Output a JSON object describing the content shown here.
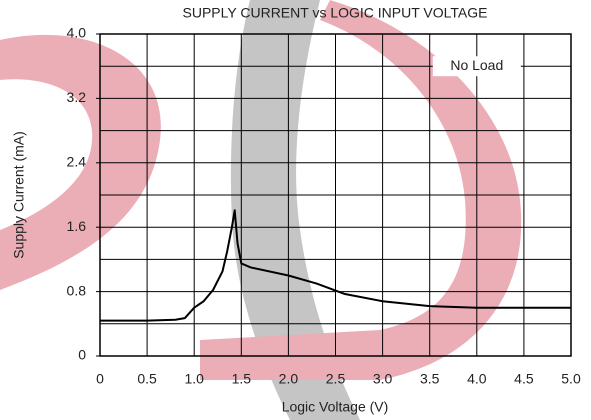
{
  "chart_data": {
    "type": "line",
    "title": "SUPPLY CURRENT vs LOGIC INPUT VOLTAGE",
    "x_label": "Logic Voltage (V)",
    "y_label": "Supply Current (mA)",
    "annotation": "No Load",
    "x": [
      0,
      0.5,
      0.8,
      0.9,
      1.0,
      1.1,
      1.2,
      1.3,
      1.35,
      1.4,
      1.43,
      1.46,
      1.5,
      1.6,
      2.0,
      2.3,
      2.6,
      3.0,
      3.5,
      4.0,
      4.5,
      5.0
    ],
    "series": [
      {
        "name": "Supply Current",
        "color": "#000000",
        "values": [
          0.44,
          0.44,
          0.45,
          0.47,
          0.6,
          0.68,
          0.82,
          1.05,
          1.3,
          1.6,
          1.81,
          1.4,
          1.15,
          1.1,
          1.0,
          0.9,
          0.77,
          0.68,
          0.62,
          0.6,
          0.6,
          0.6
        ]
      }
    ],
    "xlim": [
      0,
      5.0
    ],
    "ylim": [
      0,
      4.0
    ],
    "xticks": [
      0,
      0.5,
      {
        "value": 1,
        "label": "1.0"
      },
      1.5,
      {
        "value": 2,
        "label": "2.0"
      },
      2.5,
      {
        "value": 3,
        "label": "3.0"
      },
      3.5,
      {
        "value": 4,
        "label": "4.0"
      },
      4.5,
      {
        "value": 5,
        "label": "5.0"
      }
    ],
    "yticks": [
      0,
      0.8,
      1.6,
      2.4,
      3.2,
      {
        "value": 4,
        "label": "4.0"
      }
    ],
    "ygrid": [
      0,
      0.4,
      0.8,
      1.2,
      1.6,
      2.0,
      2.4,
      2.8,
      3.2,
      3.6,
      4.0
    ],
    "annotation_x": 4.0,
    "annotation_y": 3.6,
    "grid": true
  }
}
